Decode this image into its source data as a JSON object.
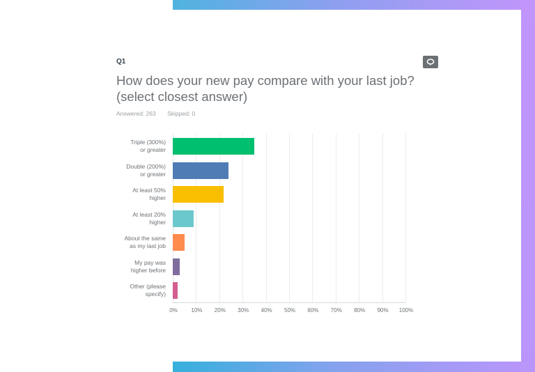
{
  "question": {
    "number": "Q1",
    "title": "How does your new pay compare with your last job? (select closest answer)",
    "answered_label": "Answered: 263",
    "skipped_label": "Skipped: 0",
    "comment_icon": "speech-bubble-icon"
  },
  "frame": {
    "gradient_start": "#4fb3df",
    "gradient_end": "#c295fb"
  },
  "chart_data": {
    "type": "bar",
    "orientation": "horizontal",
    "title": "How does your new pay compare with your last job? (select closest answer)",
    "xlabel": "",
    "ylabel": "",
    "xlim": [
      0,
      100
    ],
    "grid": true,
    "legend": "none",
    "categories": [
      "Triple (300%)\nor greater",
      "Double (200%)\nor greater",
      "At least 50%\nhigher",
      "At least 20%\nhigher",
      "About the same\nas my last job",
      "My pay was\nhigher before",
      "Other (please\nspecify)"
    ],
    "values": [
      35,
      24,
      22,
      9,
      5,
      3,
      2
    ],
    "colors": [
      "#00bf6f",
      "#507cb6",
      "#f9be00",
      "#6bc8cd",
      "#ff8b4f",
      "#7f6d9e",
      "#d25f90"
    ],
    "tick_labels": [
      "0%",
      "10%",
      "20%",
      "30%",
      "40%",
      "50%",
      "60%",
      "70%",
      "80%",
      "90%",
      "100%"
    ]
  }
}
